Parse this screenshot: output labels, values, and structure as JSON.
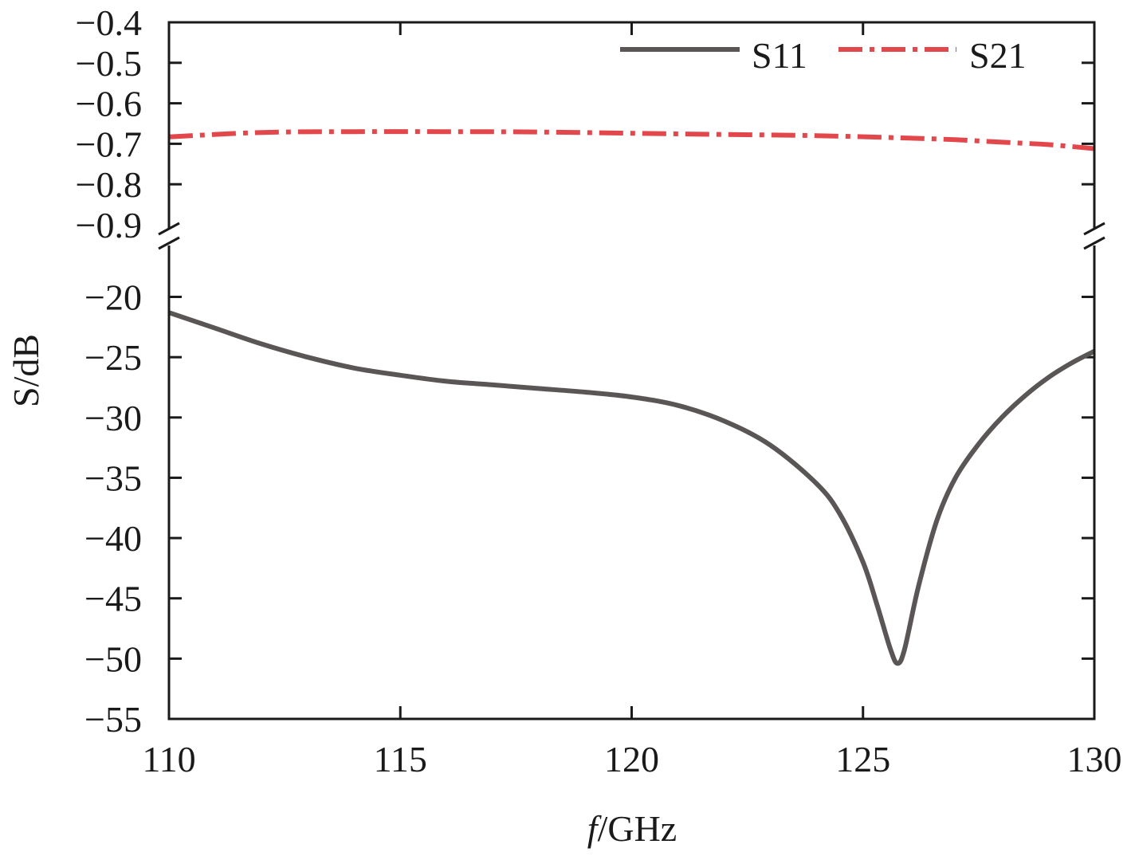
{
  "chart_data": {
    "type": "line",
    "xlabel_italic": "f",
    "xlabel_rest": "/GHz",
    "ylabel": "S/dB",
    "xlim": [
      110,
      130
    ],
    "xticks": [
      110,
      115,
      120,
      125,
      130
    ],
    "xtick_labels": [
      "110",
      "115",
      "120",
      "125",
      "130"
    ],
    "broken_y_axis": true,
    "upper_panel": {
      "ylim": [
        -0.9,
        -0.4
      ],
      "yticks": [
        -0.4,
        -0.5,
        -0.6,
        -0.7,
        -0.8,
        -0.9
      ],
      "ytick_labels": [
        "−0.4",
        "−0.5",
        "−0.6",
        "−0.7",
        "−0.8",
        "−0.9"
      ]
    },
    "lower_panel": {
      "ylim": [
        -55,
        -16
      ],
      "yticks": [
        -20,
        -25,
        -30,
        -35,
        -40,
        -45,
        -50,
        -55
      ],
      "ytick_labels": [
        "−20",
        "−25",
        "−30",
        "−35",
        "−40",
        "−45",
        "−50",
        "−55"
      ]
    },
    "legend_position": "top-right",
    "series": [
      {
        "name": "S11",
        "panel": "lower",
        "color": "#5a5655",
        "style": "solid",
        "x": [
          110,
          111,
          112,
          113,
          114,
          115,
          116,
          117,
          118,
          119,
          120,
          121,
          122,
          123,
          124,
          124.5,
          125,
          125.3,
          125.6,
          125.75,
          125.9,
          126.2,
          126.6,
          127,
          127.5,
          128,
          128.5,
          129,
          129.5,
          130
        ],
        "y": [
          -21.3,
          -22.6,
          -23.9,
          -25.0,
          -25.9,
          -26.5,
          -27.0,
          -27.3,
          -27.6,
          -27.9,
          -28.3,
          -29.0,
          -30.3,
          -32.3,
          -35.5,
          -38.0,
          -42.0,
          -45.5,
          -49.3,
          -50.4,
          -49.2,
          -44.0,
          -38.5,
          -35.0,
          -32.2,
          -30.0,
          -28.2,
          -26.7,
          -25.5,
          -24.5
        ]
      },
      {
        "name": "S21",
        "panel": "upper",
        "color": "#e2474b",
        "style": "dash-dot",
        "x": [
          110,
          112,
          114,
          116,
          118,
          120,
          122,
          124,
          126,
          127,
          128,
          129,
          130
        ],
        "y": [
          -0.683,
          -0.672,
          -0.67,
          -0.67,
          -0.671,
          -0.674,
          -0.677,
          -0.68,
          -0.686,
          -0.69,
          -0.696,
          -0.702,
          -0.712
        ]
      }
    ]
  }
}
